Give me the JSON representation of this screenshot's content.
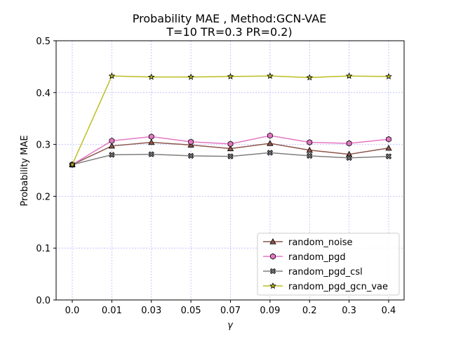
{
  "chart_data": {
    "type": "line",
    "title_line1": "Probability MAE , Method:GCN-VAE",
    "title_line2": "T=10 TR=0.3 PR=0.2)",
    "xlabel": "γ",
    "ylabel": "Probability MAE",
    "categories": [
      "0.0",
      "0.01",
      "0.03",
      "0.05",
      "0.07",
      "0.09",
      "0.2",
      "0.3",
      "0.4"
    ],
    "ylim": [
      0,
      0.5
    ],
    "yticks": [
      "0.0",
      "0.1",
      "0.2",
      "0.3",
      "0.4",
      "0.5"
    ],
    "ytick_values": [
      0,
      0.1,
      0.2,
      0.3,
      0.4,
      0.5
    ],
    "grid": true,
    "legend_position": "lower-right",
    "series": [
      {
        "name": "random_noise",
        "color": "#8c564b",
        "marker": "triangle",
        "values": [
          0.261,
          0.297,
          0.304,
          0.299,
          0.292,
          0.302,
          0.289,
          0.281,
          0.293
        ]
      },
      {
        "name": "random_pgd",
        "color": "#e377c2",
        "marker": "hexagon",
        "values": [
          0.261,
          0.307,
          0.315,
          0.305,
          0.301,
          0.317,
          0.304,
          0.302,
          0.31
        ]
      },
      {
        "name": "random_pgd_csl",
        "color": "#7f7f7f",
        "marker": "x",
        "values": [
          0.261,
          0.28,
          0.281,
          0.278,
          0.277,
          0.284,
          0.278,
          0.274,
          0.277
        ]
      },
      {
        "name": "random_pgd_gcn_vae",
        "color": "#bcbd22",
        "marker": "star",
        "values": [
          0.261,
          0.432,
          0.43,
          0.43,
          0.431,
          0.432,
          0.429,
          0.432,
          0.431
        ]
      }
    ]
  }
}
